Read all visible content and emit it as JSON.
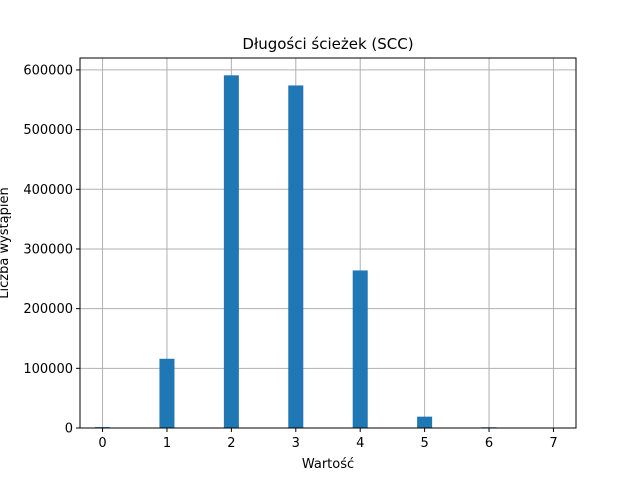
{
  "chart_data": {
    "type": "bar",
    "title": "Długości ścieżek (SCC)",
    "xlabel": "Wartość",
    "ylabel": "Liczba wystąpień",
    "bar_color": "#1f77b4",
    "grid": true,
    "xlim": [
      -0.35,
      7.35
    ],
    "ylim": [
      0,
      620000
    ],
    "xticks": [
      0,
      1,
      2,
      3,
      4,
      5,
      6,
      7
    ],
    "xtick_labels": [
      "0",
      "1",
      "2",
      "3",
      "4",
      "5",
      "6",
      "7"
    ],
    "yticks": [
      0,
      100000,
      200000,
      300000,
      400000,
      500000,
      600000
    ],
    "ytick_labels": [
      "0",
      "100000",
      "200000",
      "300000",
      "400000",
      "500000",
      "600000"
    ],
    "bar_width": 0.233,
    "x": [
      0,
      1,
      2,
      3,
      4,
      5,
      6
    ],
    "values": [
      1500,
      116000,
      591000,
      574000,
      264000,
      19000,
      1200
    ]
  }
}
